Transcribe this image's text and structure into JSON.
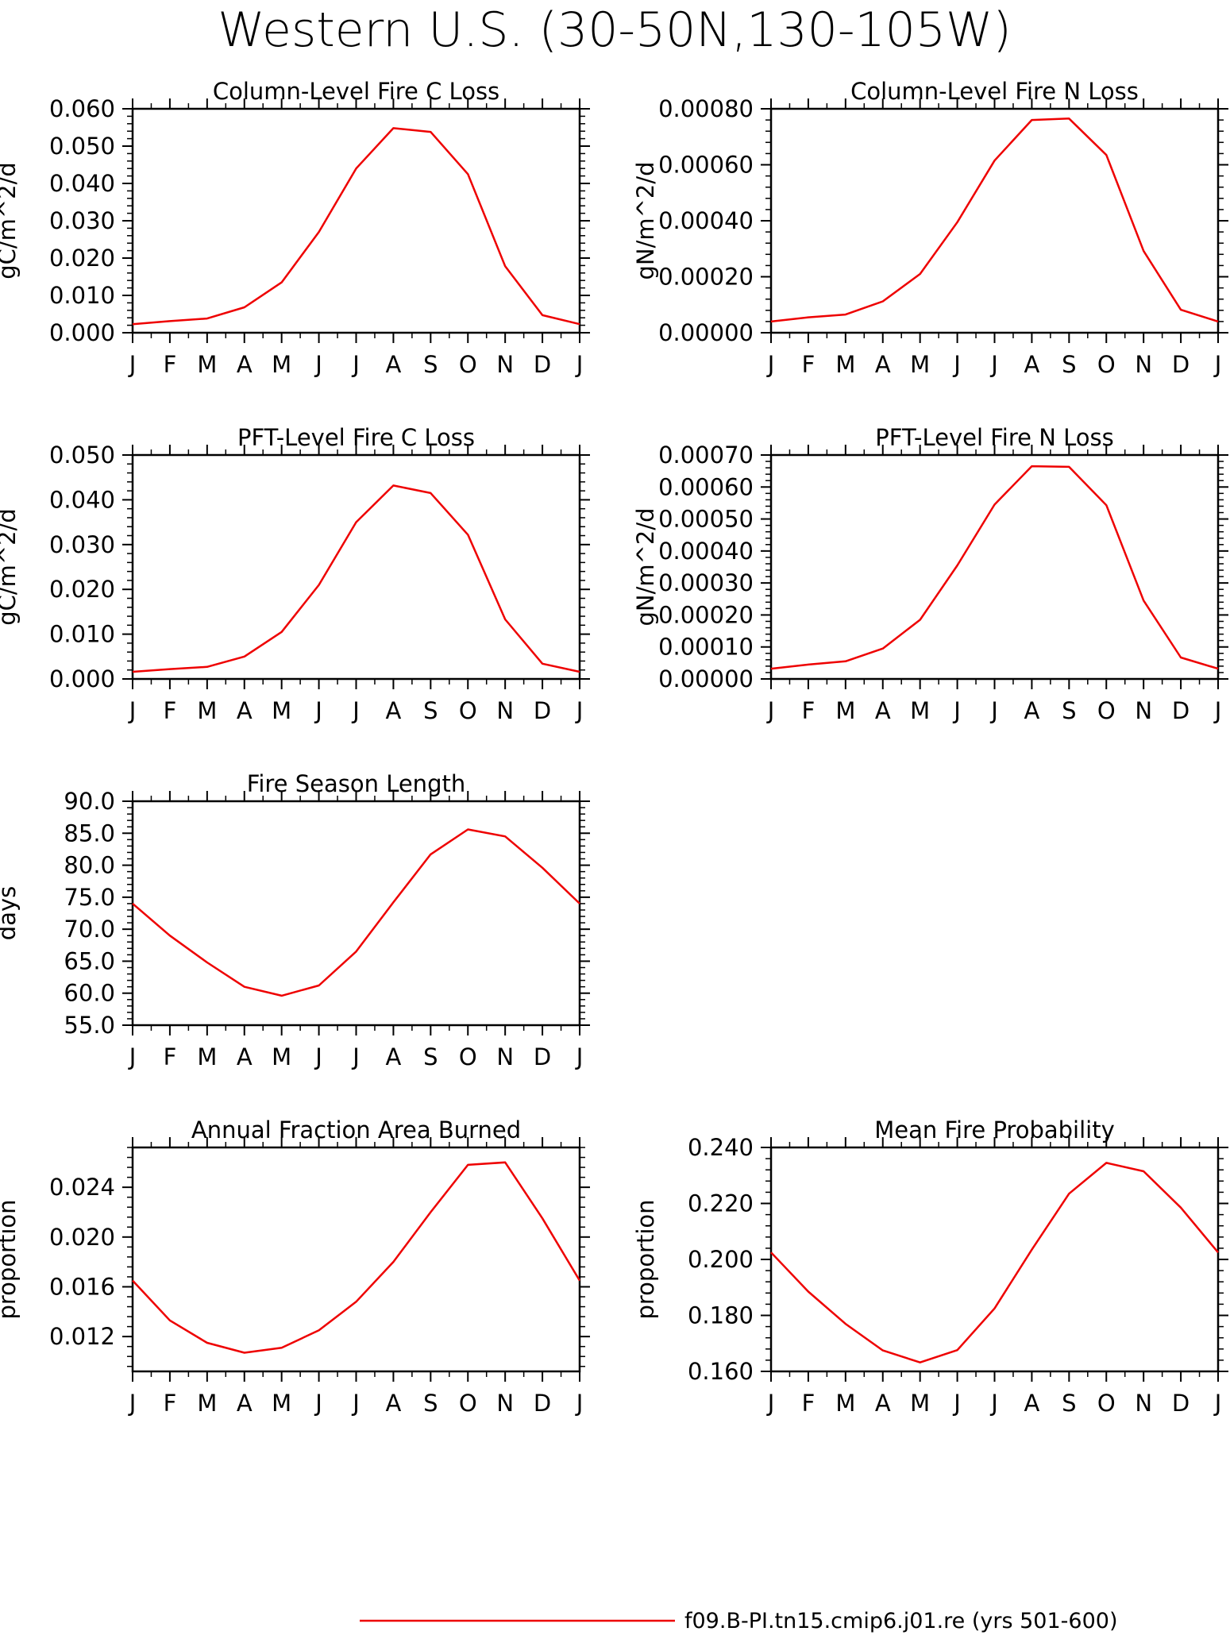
{
  "title": "Western U.S. (30-50N,130-105W)",
  "legend": {
    "label": "f09.B-PI.tn15.cmip6.j01.re (yrs 501-600)",
    "color": "#ee0000"
  },
  "months": [
    "J",
    "F",
    "M",
    "A",
    "M",
    "J",
    "J",
    "A",
    "S",
    "O",
    "N",
    "D",
    "J"
  ],
  "chart_data": [
    {
      "type": "line",
      "title": "Column-Level Fire C Loss",
      "ylabel": "gC/m^2/d",
      "ylim": [
        0,
        0.06
      ],
      "yticks": [
        "0.000",
        "0.010",
        "0.020",
        "0.030",
        "0.040",
        "0.050",
        "0.060"
      ],
      "series": [
        {
          "color": "#ee0000",
          "values": [
            0.0023,
            0.0031,
            0.0038,
            0.0068,
            0.0135,
            0.027,
            0.044,
            0.0548,
            0.0538,
            0.0425,
            0.0178,
            0.0047,
            0.0023
          ]
        }
      ]
    },
    {
      "type": "line",
      "title": "Column-Level Fire N Loss",
      "ylabel": "gN/m^2/d",
      "ylim": [
        0,
        0.0008
      ],
      "yticks": [
        "0.00000",
        "0.00020",
        "0.00040",
        "0.00060",
        "0.00080"
      ],
      "series": [
        {
          "color": "#ee0000",
          "values": [
            4e-05,
            5.5e-05,
            6.5e-05,
            0.000112,
            0.00021,
            0.000395,
            0.000615,
            0.00076,
            0.000765,
            0.000635,
            0.000292,
            8.2e-05,
            4e-05
          ]
        }
      ]
    },
    {
      "type": "line",
      "title": "PFT-Level Fire C Loss",
      "ylabel": "gC/m^2/d",
      "ylim": [
        0,
        0.05
      ],
      "yticks": [
        "0.000",
        "0.010",
        "0.020",
        "0.030",
        "0.040",
        "0.050"
      ],
      "series": [
        {
          "color": "#ee0000",
          "values": [
            0.0016,
            0.0022,
            0.0027,
            0.005,
            0.0105,
            0.021,
            0.035,
            0.0432,
            0.0415,
            0.0322,
            0.0133,
            0.0034,
            0.0016
          ]
        }
      ]
    },
    {
      "type": "line",
      "title": "PFT-Level Fire N Loss",
      "ylabel": "gN/m^2/d",
      "ylim": [
        0,
        0.0007
      ],
      "yticks": [
        "0.00000",
        "0.00010",
        "0.00020",
        "0.00030",
        "0.00040",
        "0.00050",
        "0.00060",
        "0.00070"
      ],
      "series": [
        {
          "color": "#ee0000",
          "values": [
            3.2e-05,
            4.5e-05,
            5.5e-05,
            9.5e-05,
            0.000185,
            0.000355,
            0.000545,
            0.000665,
            0.000663,
            0.000543,
            0.000245,
            6.7e-05,
            3.2e-05
          ]
        }
      ]
    },
    {
      "type": "line",
      "title": "Fire Season Length",
      "ylabel": "days",
      "ylim": [
        55,
        90
      ],
      "yticks": [
        "55.0",
        "60.0",
        "65.0",
        "70.0",
        "75.0",
        "80.0",
        "85.0",
        "90.0"
      ],
      "series": [
        {
          "color": "#ee0000",
          "values": [
            74.0,
            69.0,
            64.8,
            61.0,
            59.6,
            61.2,
            66.5,
            74.2,
            81.7,
            85.6,
            84.5,
            79.6,
            74.0
          ]
        }
      ]
    },
    {
      "type": "line",
      "title": "Annual Fraction Area Burned",
      "ylabel": "proportion",
      "ylim": [
        0.0092,
        0.0272
      ],
      "yticks": [
        "0.012",
        "0.016",
        "0.020",
        "0.024"
      ],
      "series": [
        {
          "color": "#ee0000",
          "values": [
            0.0165,
            0.0133,
            0.0115,
            0.0107,
            0.0111,
            0.0125,
            0.0148,
            0.018,
            0.022,
            0.0258,
            0.026,
            0.0215,
            0.0165
          ]
        }
      ]
    },
    {
      "type": "line",
      "title": "Mean Fire Probability",
      "ylabel": "proportion",
      "ylim": [
        0.16,
        0.24
      ],
      "yticks": [
        "0.160",
        "0.180",
        "0.200",
        "0.220",
        "0.240"
      ],
      "series": [
        {
          "color": "#ee0000",
          "values": [
            0.2025,
            0.1885,
            0.177,
            0.1675,
            0.1632,
            0.1676,
            0.1825,
            0.2035,
            0.2235,
            0.2345,
            0.2315,
            0.2185,
            0.2025
          ]
        }
      ]
    }
  ]
}
